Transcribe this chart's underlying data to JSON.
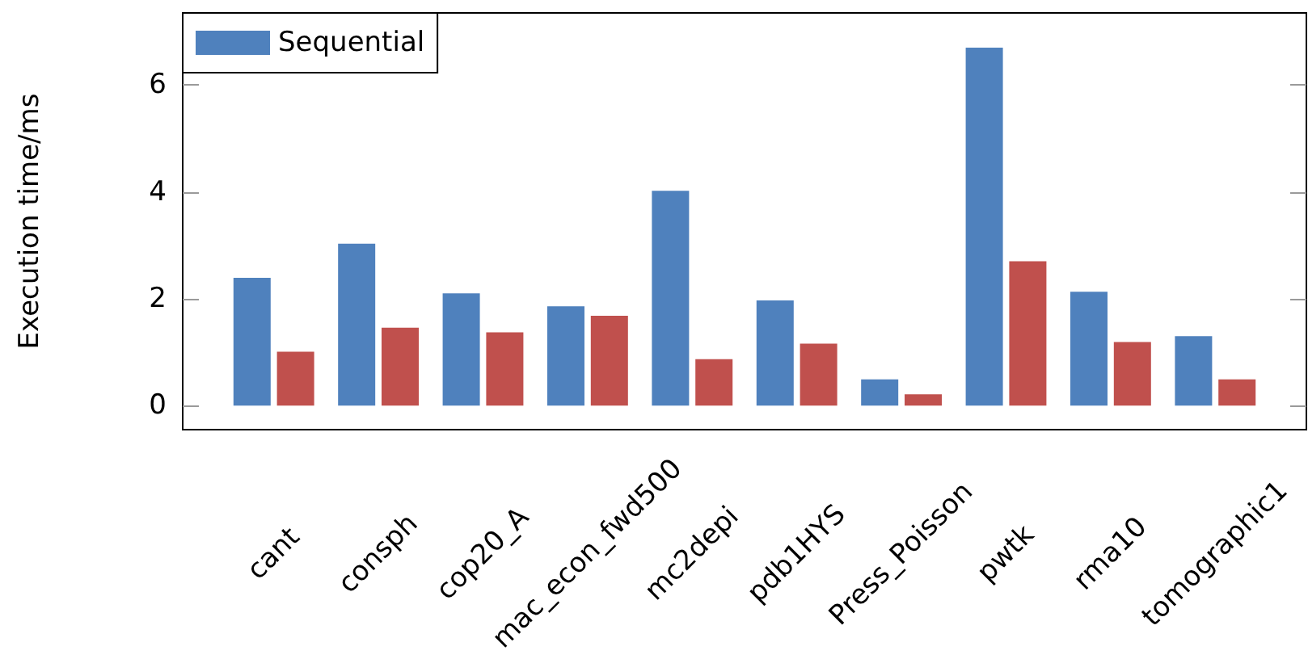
{
  "chart_data": {
    "type": "bar",
    "ylabel": "Execution time/ms",
    "categories": [
      "cant",
      "consph",
      "cop20_A",
      "mac_econ_fwd500",
      "mc2depi",
      "pdb1HYS",
      "Press_Poisson",
      "pwtk",
      "rma10",
      "tomographic1"
    ],
    "series": [
      {
        "name": "Sequential",
        "color": "#4f81bd",
        "values": [
          2.39,
          3.03,
          2.1,
          1.86,
          4.02,
          1.97,
          0.49,
          6.7,
          2.13,
          1.3
        ]
      },
      {
        "color": "#c0504d",
        "values": [
          1.01,
          1.46,
          1.37,
          1.68,
          0.87,
          1.16,
          0.21,
          2.7,
          1.19,
          0.49
        ]
      }
    ],
    "ylim": [
      -0.45,
      7.35
    ],
    "yticks": [
      0,
      2,
      4,
      6
    ],
    "grid": false,
    "legend": "top left"
  }
}
